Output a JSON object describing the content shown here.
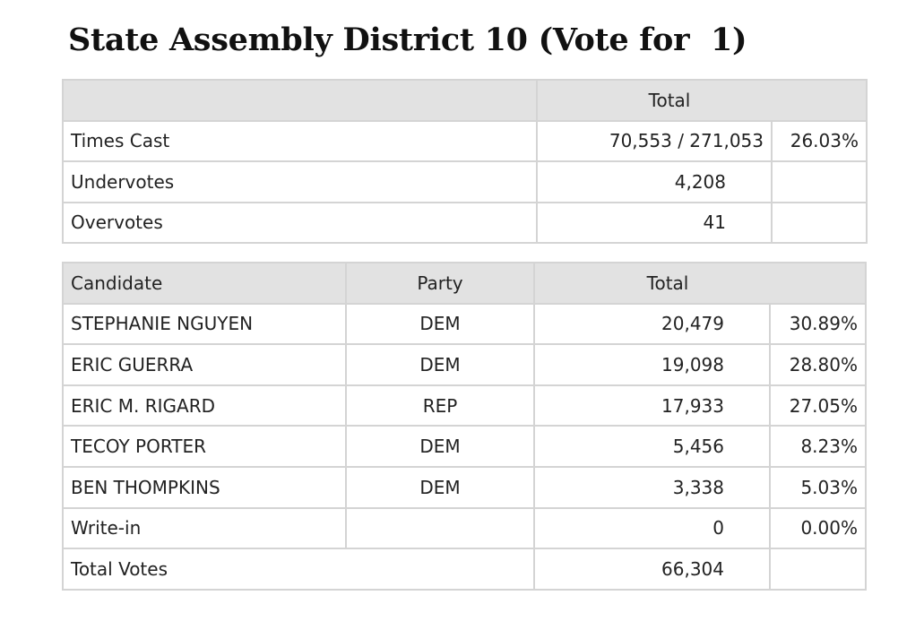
{
  "page": {
    "title": "State Assembly District 10 (Vote for  1)"
  },
  "summary": {
    "header_total": "Total",
    "rows": [
      {
        "label": "Times Cast",
        "value": "70,553 / 271,053",
        "percent": "26.03%"
      },
      {
        "label": "Undervotes",
        "value": "4,208",
        "percent": ""
      },
      {
        "label": "Overvotes",
        "value": "41",
        "percent": ""
      }
    ]
  },
  "results": {
    "headers": {
      "candidate": "Candidate",
      "party": "Party",
      "total": "Total"
    },
    "rows": [
      {
        "candidate": "STEPHANIE NGUYEN",
        "party": "DEM",
        "votes": "20,479",
        "percent": "30.89%"
      },
      {
        "candidate": "ERIC GUERRA",
        "party": "DEM",
        "votes": "19,098",
        "percent": "28.80%"
      },
      {
        "candidate": "ERIC M. RIGARD",
        "party": "REP",
        "votes": "17,933",
        "percent": "27.05%"
      },
      {
        "candidate": "TECOY PORTER",
        "party": "DEM",
        "votes": "5,456",
        "percent": "8.23%"
      },
      {
        "candidate": "BEN THOMPKINS",
        "party": "DEM",
        "votes": "3,338",
        "percent": "5.03%"
      },
      {
        "candidate": "Write-in",
        "party": "",
        "votes": "0",
        "percent": "0.00%"
      }
    ],
    "total_row": {
      "label": "Total Votes",
      "votes": "66,304",
      "percent": ""
    }
  }
}
